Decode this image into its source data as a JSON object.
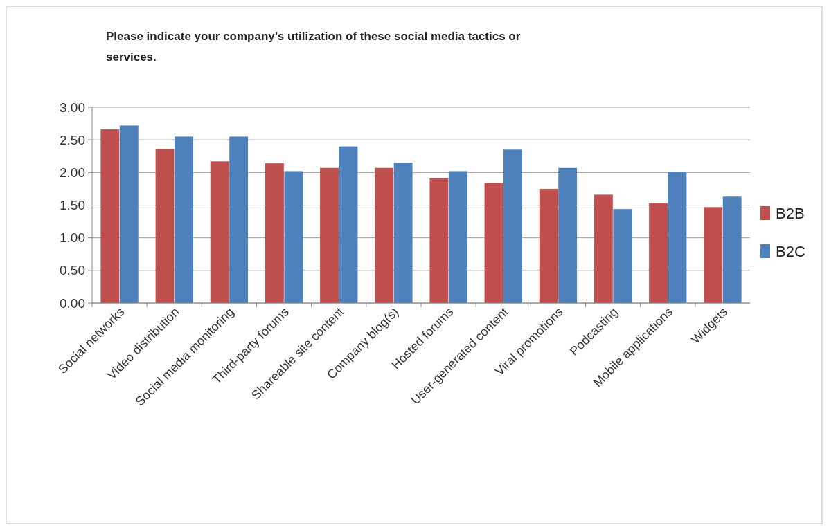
{
  "chart_data": {
    "type": "bar",
    "title": "Please indicate your company’s utilization of these social media tactics or services.",
    "categories": [
      "Social networks",
      "Video distribution",
      "Social media monitoring",
      "Third-party forums",
      "Shareable site content",
      "Company blog(s)",
      "Hosted forums",
      "User-generated content",
      "Viral promotions",
      "Podcasting",
      "Mobile applications",
      "Widgets"
    ],
    "series": [
      {
        "name": "B2B",
        "color": "#c0504d",
        "values": [
          2.66,
          2.36,
          2.17,
          2.14,
          2.07,
          2.07,
          1.91,
          1.84,
          1.75,
          1.66,
          1.53,
          1.47
        ]
      },
      {
        "name": "B2C",
        "color": "#4f81bd",
        "values": [
          2.72,
          2.55,
          2.55,
          2.02,
          2.4,
          2.15,
          2.02,
          2.35,
          2.07,
          1.44,
          2.01,
          1.63
        ]
      }
    ],
    "ylim": [
      0,
      3
    ],
    "yticks": [
      {
        "value": 0,
        "label": "0.00"
      },
      {
        "value": 0.5,
        "label": "0.50"
      },
      {
        "value": 1,
        "label": "1.00"
      },
      {
        "value": 1.5,
        "label": "1.50"
      },
      {
        "value": 2,
        "label": "2.00"
      },
      {
        "value": 2.5,
        "label": "2.50"
      },
      {
        "value": 3,
        "label": "3.00"
      }
    ],
    "grid": "y",
    "legend": "right"
  }
}
